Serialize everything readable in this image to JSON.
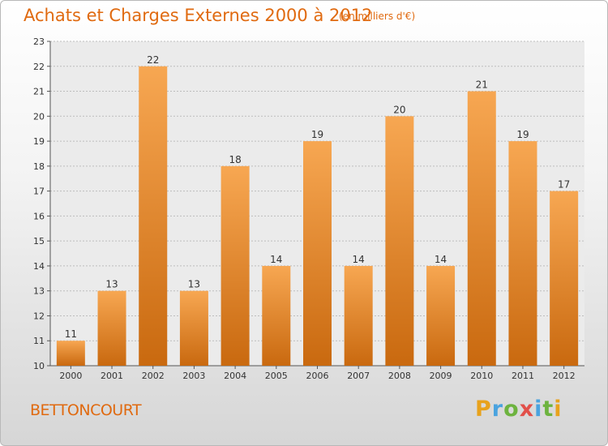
{
  "chart_data": {
    "type": "bar",
    "title": "Achats et Charges Externes 2000 à 2012",
    "subtitle": "(en milliers d'€)",
    "categories": [
      "2000",
      "2001",
      "2002",
      "2003",
      "2004",
      "2005",
      "2006",
      "2007",
      "2008",
      "2009",
      "2010",
      "2011",
      "2012"
    ],
    "values": [
      11,
      13,
      22,
      13,
      18,
      14,
      19,
      14,
      20,
      14,
      21,
      19,
      17
    ],
    "ylim": [
      10,
      23
    ],
    "yticks": [
      10,
      11,
      12,
      13,
      14,
      15,
      16,
      17,
      18,
      19,
      20,
      21,
      22,
      23
    ],
    "ytick_labels": [
      "10",
      "11",
      "12",
      "13",
      "14",
      "15",
      "16",
      "17",
      "18",
      "19",
      "20",
      "21",
      "22",
      "23"
    ],
    "grid": true,
    "bar_color_top": "#f7a752",
    "bar_color_bottom": "#c9690f"
  },
  "commune": "BETTONCOURT",
  "logo": {
    "letters": [
      "P",
      "r",
      "o",
      "x",
      "i",
      "t",
      "i"
    ],
    "colors": [
      "#e8a21c",
      "#4aa3df",
      "#6db33f",
      "#e2504a",
      "#4aa3df",
      "#6db33f",
      "#e8a21c"
    ]
  }
}
